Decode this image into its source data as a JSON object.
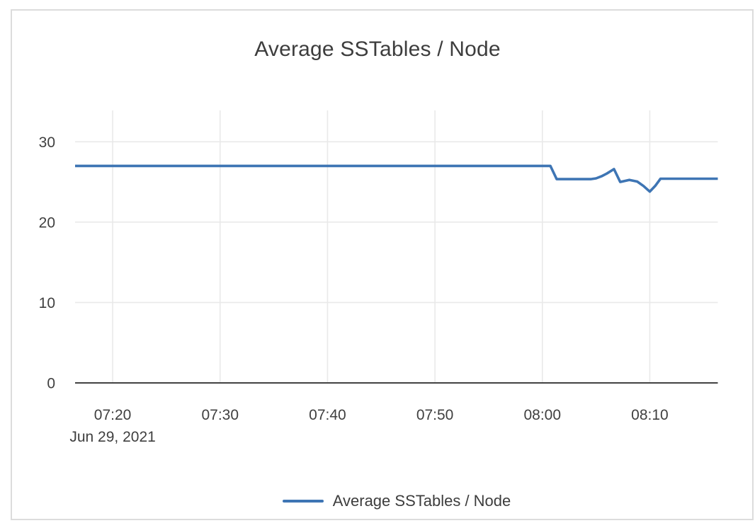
{
  "card": {
    "title": "Average SSTables / Node"
  },
  "legend": {
    "label": "Average SSTables / Node",
    "swatch_color": "#3e75b4"
  },
  "chart_data": {
    "type": "line",
    "title": "Average SSTables / Node",
    "xlabel": "",
    "ylabel": "",
    "date_label": "Jun 29, 2021",
    "x_ticks": [
      "07:20",
      "07:30",
      "07:40",
      "07:50",
      "08:00",
      "08:10"
    ],
    "y_ticks": [
      0,
      10,
      20,
      30
    ],
    "xlim": [
      "07:16:30",
      "08:16:20"
    ],
    "ylim": [
      0,
      33.9
    ],
    "grid": true,
    "legend_position": "bottom",
    "colors": {
      "line": "#3e75b4",
      "grid": "#e9e9e9",
      "axis": "#424242",
      "text": "#3f3f3f",
      "card_border": "#dcdcdc"
    },
    "series": [
      {
        "name": "Average SSTables / Node",
        "color": "#3e75b4",
        "points": [
          [
            "07:16:30",
            27
          ],
          [
            "08:00:45",
            27
          ],
          [
            "08:01:20",
            25.35
          ],
          [
            "08:04:30",
            25.35
          ],
          [
            "08:05:00",
            25.45
          ],
          [
            "08:05:30",
            25.7
          ],
          [
            "08:06:00",
            26.05
          ],
          [
            "08:06:40",
            26.6
          ],
          [
            "08:07:15",
            25.0
          ],
          [
            "08:08:05",
            25.25
          ],
          [
            "08:08:50",
            25.05
          ],
          [
            "08:09:25",
            24.5
          ],
          [
            "08:10:00",
            23.8
          ],
          [
            "08:10:30",
            24.5
          ],
          [
            "08:11:00",
            25.4
          ],
          [
            "08:16:20",
            25.4
          ]
        ]
      }
    ]
  }
}
